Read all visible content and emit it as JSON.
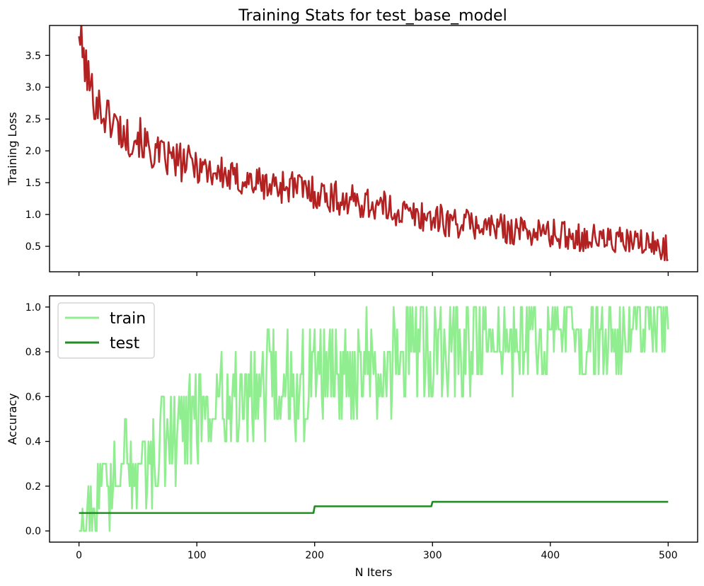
{
  "chart_data": {
    "type": "line",
    "title": "Training Stats for test_base_model",
    "panels": [
      {
        "type": "line",
        "xlabel": "",
        "ylabel": "Training Loss",
        "xlim": [
          -25,
          525
        ],
        "ylim": [
          0.1,
          3.97
        ],
        "xticks": [
          0,
          100,
          200,
          300,
          400,
          500
        ],
        "xticks_labeled": false,
        "yticks": [
          0.5,
          1.0,
          1.5,
          2.0,
          2.5,
          3.0,
          3.5
        ],
        "ytick_labels": [
          "0.5",
          "1.0",
          "1.5",
          "2.0",
          "2.5",
          "3.0",
          "3.5"
        ],
        "grid": false,
        "series": [
          {
            "color": "#b22222",
            "x": [
              0,
              10,
              20,
              30,
              40,
              50,
              60,
              70,
              80,
              90,
              100,
              110,
              120,
              130,
              140,
              150,
              160,
              170,
              180,
              190,
              200,
              210,
              220,
              230,
              240,
              250,
              260,
              270,
              280,
              290,
              300,
              310,
              320,
              330,
              340,
              350,
              360,
              370,
              380,
              390,
              400,
              410,
              420,
              430,
              440,
              450,
              460,
              470,
              480,
              490,
              500
            ],
            "y": [
              3.8,
              2.95,
              2.6,
              2.45,
              2.2,
              2.25,
              2.0,
              1.9,
              1.85,
              1.8,
              1.8,
              1.7,
              1.65,
              1.55,
              1.55,
              1.5,
              1.45,
              1.45,
              1.45,
              1.4,
              1.35,
              1.3,
              1.25,
              1.2,
              1.2,
              1.15,
              1.1,
              1.05,
              1.0,
              0.98,
              0.95,
              0.9,
              0.88,
              0.85,
              0.83,
              0.8,
              0.78,
              0.76,
              0.74,
              0.72,
              0.7,
              0.68,
              0.66,
              0.64,
              0.62,
              0.6,
              0.58,
              0.56,
              0.54,
              0.5,
              0.48
            ]
          }
        ]
      },
      {
        "type": "line",
        "xlabel": "N Iters",
        "ylabel": "Accuracy",
        "xlim": [
          -25,
          525
        ],
        "ylim": [
          -0.05,
          1.05
        ],
        "xticks": [
          0,
          100,
          200,
          300,
          400,
          500
        ],
        "xtick_labels": [
          "0",
          "100",
          "200",
          "300",
          "400",
          "500"
        ],
        "xticks_labeled": true,
        "yticks": [
          0.0,
          0.2,
          0.4,
          0.6,
          0.8,
          1.0
        ],
        "ytick_labels": [
          "0.0",
          "0.2",
          "0.4",
          "0.6",
          "0.8",
          "1.0"
        ],
        "grid": false,
        "legend": {
          "placement": "top-left"
        },
        "series": [
          {
            "name": "train",
            "color": "#90ee90",
            "x": [
              0,
              10,
              20,
              30,
              40,
              50,
              60,
              70,
              80,
              90,
              100,
              110,
              120,
              130,
              140,
              150,
              160,
              170,
              180,
              190,
              200,
              210,
              220,
              230,
              240,
              250,
              260,
              270,
              280,
              290,
              300,
              310,
              320,
              330,
              340,
              350,
              360,
              370,
              380,
              390,
              400,
              410,
              420,
              430,
              440,
              450,
              460,
              470,
              480,
              490,
              500
            ],
            "y": [
              0.0,
              0.1,
              0.15,
              0.2,
              0.3,
              0.25,
              0.3,
              0.4,
              0.45,
              0.5,
              0.55,
              0.55,
              0.6,
              0.6,
              0.6,
              0.6,
              0.65,
              0.65,
              0.65,
              0.65,
              0.7,
              0.7,
              0.7,
              0.7,
              0.75,
              0.75,
              0.75,
              0.75,
              0.8,
              0.8,
              0.8,
              0.8,
              0.8,
              0.85,
              0.85,
              0.85,
              0.85,
              0.85,
              0.85,
              0.85,
              0.9,
              0.9,
              0.9,
              0.9,
              0.9,
              0.9,
              0.9,
              0.95,
              0.95,
              0.95,
              1.0
            ]
          },
          {
            "name": "test",
            "color": "#228b22",
            "x": [
              0,
              199,
              200,
              299,
              300,
              500
            ],
            "y": [
              0.08,
              0.08,
              0.11,
              0.11,
              0.13,
              0.13
            ]
          }
        ]
      }
    ]
  }
}
